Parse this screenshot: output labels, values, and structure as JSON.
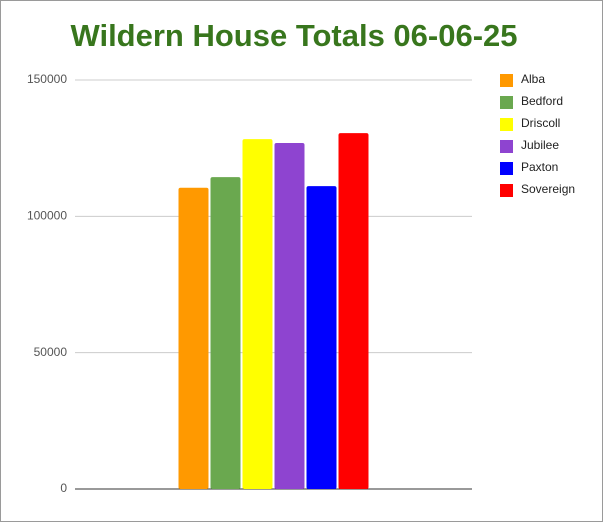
{
  "chart_data": {
    "type": "bar",
    "title": "Wildern House Totals 06-06-25",
    "categories": [
      null
    ],
    "series": [
      {
        "name": "Alba",
        "color": "#ff9900",
        "values": [
          110500
        ]
      },
      {
        "name": "Bedford",
        "color": "#6aa84f",
        "values": [
          114400
        ]
      },
      {
        "name": "Driscoll",
        "color": "#ffff00",
        "values": [
          128300
        ]
      },
      {
        "name": "Jubilee",
        "color": "#8e44d0",
        "values": [
          126900
        ]
      },
      {
        "name": "Paxton",
        "color": "#0000ff",
        "values": [
          111100
        ]
      },
      {
        "name": "Sovereign",
        "color": "#ff0000",
        "values": [
          130500
        ]
      }
    ],
    "ylim": [
      0,
      150000
    ],
    "yticks": [
      0,
      50000,
      100000,
      150000
    ],
    "grid": true,
    "legend": "right",
    "title_color": "#38761d"
  }
}
